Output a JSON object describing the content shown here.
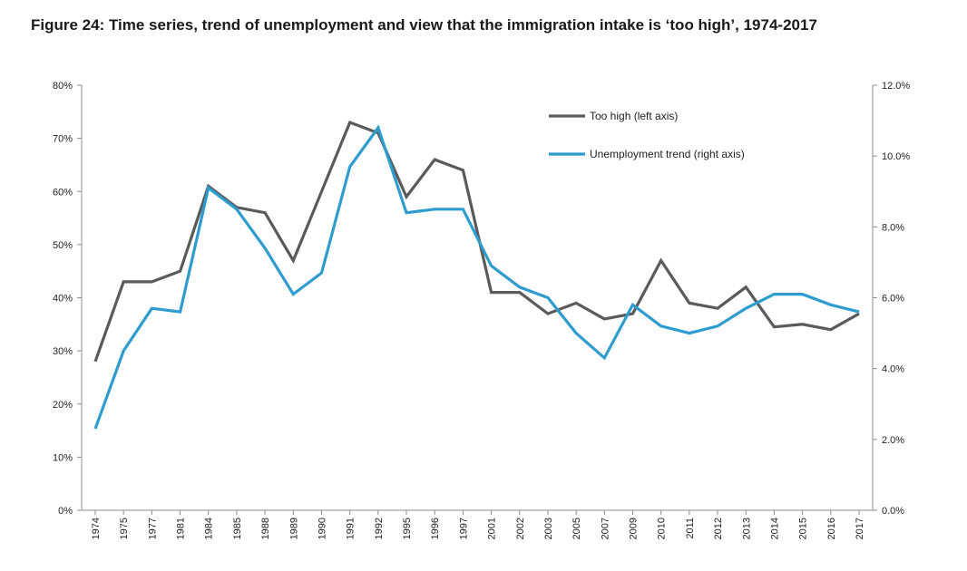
{
  "figure": {
    "title": "Figure 24: Time series, trend of unemployment and view that the immigration intake is ‘too high’, 1974-2017"
  },
  "chart_data": {
    "type": "line",
    "title": "Figure 24: Time series, trend of unemployment and view that the immigration intake is ‘too high’, 1974-2017",
    "categories": [
      "1974",
      "1975",
      "1977",
      "1981",
      "1984",
      "1985",
      "1988",
      "1989",
      "1990",
      "1991",
      "1992",
      "1995",
      "1996",
      "1997",
      "2001",
      "2002",
      "2003",
      "2005",
      "2007",
      "2009",
      "2010",
      "2011",
      "2012",
      "2013",
      "2014",
      "2015",
      "2016",
      "2017"
    ],
    "left_axis": {
      "ylim": [
        0,
        80
      ],
      "ticks": [
        0,
        10,
        20,
        30,
        40,
        50,
        60,
        70,
        80
      ],
      "tick_labels": [
        "0%",
        "10%",
        "20%",
        "30%",
        "40%",
        "50%",
        "60%",
        "70%",
        "80%"
      ]
    },
    "right_axis": {
      "ylim": [
        0,
        12
      ],
      "ticks": [
        0,
        2,
        4,
        6,
        8,
        10,
        12
      ],
      "tick_labels": [
        "0.0%",
        "2.0%",
        "4.0%",
        "6.0%",
        "8.0%",
        "10.0%",
        "12.0%"
      ]
    },
    "series": [
      {
        "name": "Too high (left axis)",
        "axis": "left",
        "color": "#5a5a5a",
        "values": [
          28,
          43,
          43,
          45,
          61,
          57,
          56,
          47,
          60,
          73,
          71,
          59,
          66,
          64,
          41,
          41,
          37,
          39,
          36,
          37,
          47,
          39,
          38,
          42,
          34.5,
          35,
          34,
          37
        ]
      },
      {
        "name": "Unemployment trend (right axis)",
        "axis": "right",
        "color": "#2e9ccf",
        "values": [
          2.3,
          4.5,
          5.7,
          5.6,
          9.1,
          8.5,
          7.4,
          6.1,
          6.7,
          9.7,
          10.8,
          8.4,
          8.5,
          8.5,
          6.9,
          6.3,
          6.0,
          5.0,
          4.3,
          5.8,
          5.2,
          5.0,
          5.2,
          5.7,
          6.1,
          6.1,
          5.8,
          5.6
        ]
      }
    ],
    "legend_position": "top-right",
    "grid": false
  }
}
